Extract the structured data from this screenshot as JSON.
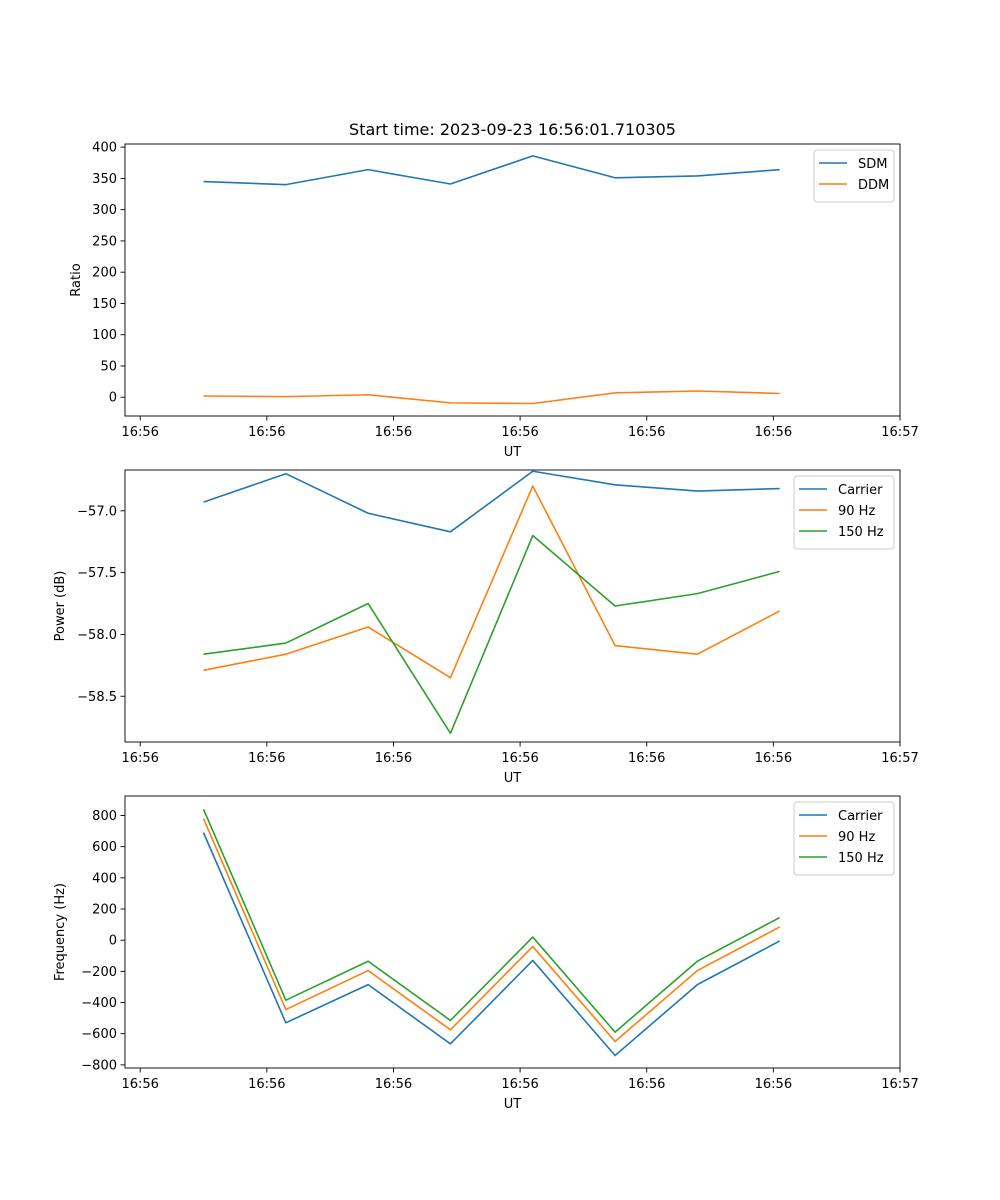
{
  "chart_data": [
    {
      "type": "line",
      "title": "Start time: 2023-09-23 16:56:01.710305",
      "xlabel": "UT",
      "ylabel": "Ratio",
      "x_ticks": [
        0,
        1,
        2,
        3,
        4,
        5,
        6
      ],
      "x_tick_labels": [
        "16:56",
        "16:56",
        "16:56",
        "16:56",
        "16:56",
        "16:56",
        "16:57"
      ],
      "xlim": [
        -0.12,
        6.0
      ],
      "x": [
        0.5,
        1.15,
        1.8,
        2.45,
        3.1,
        3.75,
        4.4,
        5.05
      ],
      "ylim": [
        -30,
        405
      ],
      "y_ticks": [
        0,
        50,
        100,
        150,
        200,
        250,
        300,
        350,
        400
      ],
      "y_tick_labels": [
        "0",
        "50",
        "100",
        "150",
        "200",
        "250",
        "300",
        "350",
        "400"
      ],
      "legend": "top-right",
      "series": [
        {
          "name": "SDM",
          "color": "#1f77b4",
          "values": [
            345,
            340,
            364,
            341,
            386,
            351,
            354,
            364
          ]
        },
        {
          "name": "DDM",
          "color": "#ff7f0e",
          "values": [
            2,
            1,
            4,
            -9,
            -10,
            7,
            10,
            6
          ]
        }
      ]
    },
    {
      "type": "line",
      "title": "",
      "xlabel": "UT",
      "ylabel": "Power (dB)",
      "x_ticks": [
        0,
        1,
        2,
        3,
        4,
        5,
        6
      ],
      "x_tick_labels": [
        "16:56",
        "16:56",
        "16:56",
        "16:56",
        "16:56",
        "16:56",
        "16:57"
      ],
      "xlim": [
        -0.12,
        6.0
      ],
      "x": [
        0.5,
        1.15,
        1.8,
        2.45,
        3.1,
        3.75,
        4.4,
        5.05
      ],
      "ylim": [
        -58.87,
        -56.67
      ],
      "y_ticks": [
        -57.0,
        -57.5,
        -58.0,
        -58.5
      ],
      "y_tick_labels": [
        "−57.0",
        "−57.5",
        "−58.0",
        "−58.5"
      ],
      "legend": "top-right",
      "series": [
        {
          "name": "Carrier",
          "color": "#1f77b4",
          "values": [
            -56.93,
            -56.7,
            -57.02,
            -57.17,
            -56.68,
            -56.79,
            -56.84,
            -56.82
          ]
        },
        {
          "name": "90 Hz",
          "color": "#ff7f0e",
          "values": [
            -58.29,
            -58.16,
            -57.94,
            -58.35,
            -56.8,
            -58.09,
            -58.16,
            -57.81
          ]
        },
        {
          "name": "150 Hz",
          "color": "#2ca02c",
          "values": [
            -58.16,
            -58.07,
            -57.75,
            -58.8,
            -57.2,
            -57.77,
            -57.67,
            -57.49
          ]
        }
      ]
    },
    {
      "type": "line",
      "title": "",
      "xlabel": "UT",
      "ylabel": "Frequency (Hz)",
      "x_ticks": [
        0,
        1,
        2,
        3,
        4,
        5,
        6
      ],
      "x_tick_labels": [
        "16:56",
        "16:56",
        "16:56",
        "16:56",
        "16:56",
        "16:56",
        "16:57"
      ],
      "xlim": [
        -0.12,
        6.0
      ],
      "x": [
        0.5,
        1.15,
        1.8,
        2.45,
        3.1,
        3.75,
        4.4,
        5.05
      ],
      "ylim": [
        -820,
        925
      ],
      "y_ticks": [
        -800,
        -600,
        -400,
        -200,
        0,
        200,
        400,
        600,
        800
      ],
      "y_tick_labels": [
        "−800",
        "−600",
        "−400",
        "−200",
        "0",
        "200",
        "400",
        "600",
        "800"
      ],
      "legend": "top-right",
      "series": [
        {
          "name": "Carrier",
          "color": "#1f77b4",
          "values": [
            690,
            -530,
            -285,
            -665,
            -130,
            -740,
            -285,
            -5
          ]
        },
        {
          "name": "90 Hz",
          "color": "#ff7f0e",
          "values": [
            780,
            -445,
            -195,
            -575,
            -40,
            -650,
            -195,
            85
          ]
        },
        {
          "name": "150 Hz",
          "color": "#2ca02c",
          "values": [
            840,
            -385,
            -135,
            -515,
            20,
            -590,
            -135,
            145
          ]
        }
      ]
    }
  ]
}
